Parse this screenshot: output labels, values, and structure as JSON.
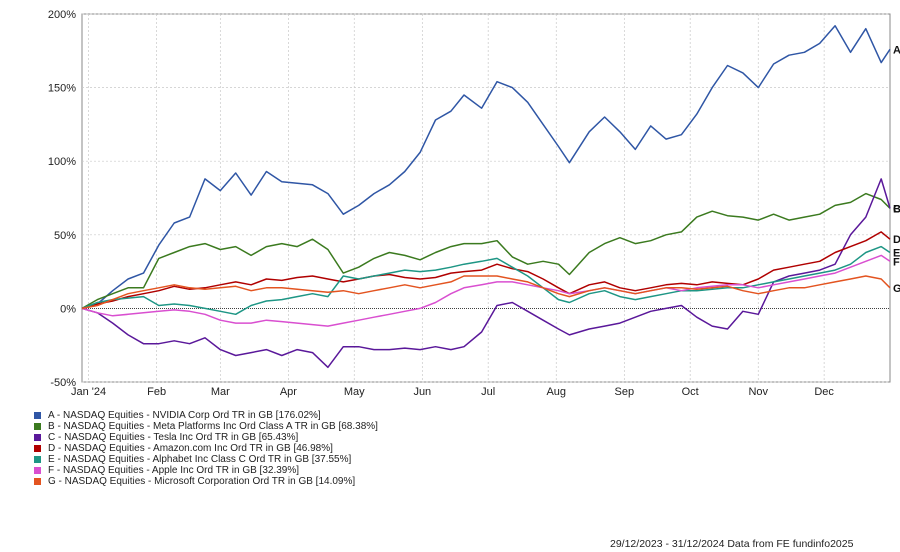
{
  "chart_data": {
    "type": "line",
    "xlabel": "",
    "ylabel": "",
    "ylim": [
      -50,
      200
    ],
    "y_ticks": [
      "200%",
      "150%",
      "100%",
      "50%",
      "0%",
      "-50%"
    ],
    "x_ticks": [
      "Jan '24",
      "Feb",
      "Mar",
      "Apr",
      "May",
      "Jun",
      "Jul",
      "Aug",
      "Sep",
      "Oct",
      "Nov",
      "Dec"
    ],
    "grid": true,
    "footer": "29/12/2023 - 31/12/2024 Data from FE fundinfo2025",
    "series": [
      {
        "letter": "A",
        "color": "#2f56a5",
        "name": "A - NASDAQ Equities - NVIDIA Corp Ord TR in GB [176.02%]",
        "x": [
          "2023-12-29",
          "2024-01-05",
          "2024-01-12",
          "2024-01-19",
          "2024-01-26",
          "2024-02-02",
          "2024-02-09",
          "2024-02-16",
          "2024-02-23",
          "2024-03-01",
          "2024-03-08",
          "2024-03-15",
          "2024-03-22",
          "2024-03-29",
          "2024-04-05",
          "2024-04-12",
          "2024-04-19",
          "2024-04-26",
          "2024-05-03",
          "2024-05-10",
          "2024-05-17",
          "2024-05-24",
          "2024-05-31",
          "2024-06-07",
          "2024-06-14",
          "2024-06-20",
          "2024-06-28",
          "2024-07-05",
          "2024-07-12",
          "2024-07-19",
          "2024-07-26",
          "2024-08-02",
          "2024-08-07",
          "2024-08-16",
          "2024-08-23",
          "2024-08-30",
          "2024-09-06",
          "2024-09-13",
          "2024-09-20",
          "2024-09-27",
          "2024-10-04",
          "2024-10-11",
          "2024-10-18",
          "2024-10-25",
          "2024-11-01",
          "2024-11-08",
          "2024-11-15",
          "2024-11-22",
          "2024-11-29",
          "2024-12-06",
          "2024-12-13",
          "2024-12-20",
          "2024-12-27",
          "2024-12-31"
        ],
        "y": [
          0,
          3,
          12,
          20,
          24,
          43,
          58,
          62,
          88,
          80,
          92,
          77,
          93,
          86,
          85,
          84,
          78,
          64,
          70,
          78,
          84,
          93,
          106,
          128,
          134,
          145,
          136,
          154,
          150,
          140,
          125,
          110,
          99,
          120,
          130,
          120,
          108,
          124,
          115,
          118,
          132,
          150,
          165,
          160,
          150,
          166,
          172,
          174,
          180,
          192,
          174,
          190,
          167,
          176
        ]
      },
      {
        "letter": "B",
        "color": "#3b7a1f",
        "name": "B - NASDAQ Equities - Meta Platforms Inc Ord Class A TR in GB [68.38%]",
        "x": [
          "2023-12-29",
          "2024-01-05",
          "2024-01-12",
          "2024-01-19",
          "2024-01-26",
          "2024-02-02",
          "2024-02-09",
          "2024-02-16",
          "2024-02-23",
          "2024-03-01",
          "2024-03-08",
          "2024-03-15",
          "2024-03-22",
          "2024-03-29",
          "2024-04-05",
          "2024-04-12",
          "2024-04-19",
          "2024-04-26",
          "2024-05-03",
          "2024-05-10",
          "2024-05-17",
          "2024-05-24",
          "2024-05-31",
          "2024-06-07",
          "2024-06-14",
          "2024-06-20",
          "2024-06-28",
          "2024-07-05",
          "2024-07-12",
          "2024-07-19",
          "2024-07-26",
          "2024-08-02",
          "2024-08-07",
          "2024-08-16",
          "2024-08-23",
          "2024-08-30",
          "2024-09-06",
          "2024-09-13",
          "2024-09-20",
          "2024-09-27",
          "2024-10-04",
          "2024-10-11",
          "2024-10-18",
          "2024-10-25",
          "2024-11-01",
          "2024-11-08",
          "2024-11-15",
          "2024-11-22",
          "2024-11-29",
          "2024-12-06",
          "2024-12-13",
          "2024-12-20",
          "2024-12-27",
          "2024-12-31"
        ],
        "y": [
          0,
          6,
          10,
          14,
          14,
          34,
          38,
          42,
          44,
          40,
          42,
          36,
          42,
          44,
          42,
          47,
          40,
          24,
          28,
          34,
          38,
          36,
          33,
          38,
          42,
          44,
          44,
          46,
          35,
          30,
          32,
          30,
          23,
          38,
          44,
          48,
          44,
          46,
          50,
          52,
          62,
          66,
          63,
          62,
          60,
          64,
          60,
          62,
          64,
          70,
          72,
          78,
          74,
          68
        ]
      },
      {
        "letter": "C",
        "color": "#5a189a",
        "name": "C - NASDAQ Equities - Tesla Inc Ord TR in GB [65.43%]",
        "x": [
          "2023-12-29",
          "2024-01-05",
          "2024-01-12",
          "2024-01-19",
          "2024-01-26",
          "2024-02-02",
          "2024-02-09",
          "2024-02-16",
          "2024-02-23",
          "2024-03-01",
          "2024-03-08",
          "2024-03-15",
          "2024-03-22",
          "2024-03-29",
          "2024-04-05",
          "2024-04-12",
          "2024-04-19",
          "2024-04-26",
          "2024-05-03",
          "2024-05-10",
          "2024-05-17",
          "2024-05-24",
          "2024-05-31",
          "2024-06-07",
          "2024-06-14",
          "2024-06-20",
          "2024-06-28",
          "2024-07-05",
          "2024-07-12",
          "2024-07-19",
          "2024-07-26",
          "2024-08-02",
          "2024-08-07",
          "2024-08-16",
          "2024-08-23",
          "2024-08-30",
          "2024-09-06",
          "2024-09-13",
          "2024-09-20",
          "2024-09-27",
          "2024-10-04",
          "2024-10-11",
          "2024-10-18",
          "2024-10-25",
          "2024-11-01",
          "2024-11-08",
          "2024-11-15",
          "2024-11-22",
          "2024-11-29",
          "2024-12-06",
          "2024-12-13",
          "2024-12-20",
          "2024-12-27",
          "2024-12-31"
        ],
        "y": [
          0,
          -3,
          -10,
          -18,
          -24,
          -24,
          -22,
          -24,
          -20,
          -28,
          -32,
          -30,
          -28,
          -32,
          -28,
          -30,
          -40,
          -26,
          -26,
          -28,
          -28,
          -27,
          -28,
          -26,
          -28,
          -26,
          -16,
          2,
          4,
          -2,
          -8,
          -14,
          -18,
          -14,
          -12,
          -10,
          -6,
          -2,
          0,
          2,
          -6,
          -12,
          -14,
          -2,
          -4,
          18,
          22,
          24,
          26,
          30,
          50,
          62,
          88,
          68
        ]
      },
      {
        "letter": "D",
        "color": "#b00000",
        "name": "D - NASDAQ Equities - Amazon.com Inc Ord TR in GB [46.98%]",
        "x": [
          "2023-12-29",
          "2024-01-05",
          "2024-01-12",
          "2024-01-19",
          "2024-01-26",
          "2024-02-02",
          "2024-02-09",
          "2024-02-16",
          "2024-02-23",
          "2024-03-01",
          "2024-03-08",
          "2024-03-15",
          "2024-03-22",
          "2024-03-29",
          "2024-04-05",
          "2024-04-12",
          "2024-04-19",
          "2024-04-26",
          "2024-05-03",
          "2024-05-10",
          "2024-05-17",
          "2024-05-24",
          "2024-05-31",
          "2024-06-07",
          "2024-06-14",
          "2024-06-20",
          "2024-06-28",
          "2024-07-05",
          "2024-07-12",
          "2024-07-19",
          "2024-07-26",
          "2024-08-02",
          "2024-08-07",
          "2024-08-16",
          "2024-08-23",
          "2024-08-30",
          "2024-09-06",
          "2024-09-13",
          "2024-09-20",
          "2024-09-27",
          "2024-10-04",
          "2024-10-11",
          "2024-10-18",
          "2024-10-25",
          "2024-11-01",
          "2024-11-08",
          "2024-11-15",
          "2024-11-22",
          "2024-11-29",
          "2024-12-06",
          "2024-12-13",
          "2024-12-20",
          "2024-12-27",
          "2024-12-31"
        ],
        "y": [
          0,
          3,
          5,
          8,
          10,
          12,
          15,
          13,
          14,
          16,
          18,
          16,
          20,
          19,
          21,
          22,
          20,
          18,
          20,
          22,
          23,
          21,
          20,
          21,
          24,
          25,
          26,
          30,
          27,
          25,
          20,
          14,
          10,
          16,
          18,
          14,
          12,
          14,
          16,
          17,
          16,
          18,
          17,
          16,
          20,
          26,
          28,
          30,
          32,
          38,
          42,
          46,
          52,
          47
        ]
      },
      {
        "letter": "E",
        "color": "#1e9685",
        "name": "E - NASDAQ Equities - Alphabet Inc Class C Ord TR in GB [37.55%]",
        "x": [
          "2023-12-29",
          "2024-01-05",
          "2024-01-12",
          "2024-01-19",
          "2024-01-26",
          "2024-02-02",
          "2024-02-09",
          "2024-02-16",
          "2024-02-23",
          "2024-03-01",
          "2024-03-08",
          "2024-03-15",
          "2024-03-22",
          "2024-03-29",
          "2024-04-05",
          "2024-04-12",
          "2024-04-19",
          "2024-04-26",
          "2024-05-03",
          "2024-05-10",
          "2024-05-17",
          "2024-05-24",
          "2024-05-31",
          "2024-06-07",
          "2024-06-14",
          "2024-06-20",
          "2024-06-28",
          "2024-07-05",
          "2024-07-12",
          "2024-07-19",
          "2024-07-26",
          "2024-08-02",
          "2024-08-07",
          "2024-08-16",
          "2024-08-23",
          "2024-08-30",
          "2024-09-06",
          "2024-09-13",
          "2024-09-20",
          "2024-09-27",
          "2024-10-04",
          "2024-10-11",
          "2024-10-18",
          "2024-10-25",
          "2024-11-01",
          "2024-11-08",
          "2024-11-15",
          "2024-11-22",
          "2024-11-29",
          "2024-12-06",
          "2024-12-13",
          "2024-12-20",
          "2024-12-27",
          "2024-12-31"
        ],
        "y": [
          0,
          4,
          6,
          7,
          8,
          2,
          3,
          2,
          0,
          -2,
          -4,
          2,
          5,
          6,
          8,
          10,
          8,
          22,
          20,
          22,
          24,
          26,
          25,
          26,
          28,
          30,
          32,
          34,
          28,
          22,
          14,
          6,
          4,
          10,
          12,
          8,
          6,
          8,
          10,
          12,
          12,
          13,
          14,
          14,
          16,
          18,
          20,
          22,
          24,
          26,
          30,
          38,
          42,
          38
        ]
      },
      {
        "letter": "F",
        "color": "#d94fd0",
        "name": "F - NASDAQ Equities - Apple Inc Ord TR in GB [32.39%]",
        "x": [
          "2023-12-29",
          "2024-01-05",
          "2024-01-12",
          "2024-01-19",
          "2024-01-26",
          "2024-02-02",
          "2024-02-09",
          "2024-02-16",
          "2024-02-23",
          "2024-03-01",
          "2024-03-08",
          "2024-03-15",
          "2024-03-22",
          "2024-03-29",
          "2024-04-05",
          "2024-04-12",
          "2024-04-19",
          "2024-04-26",
          "2024-05-03",
          "2024-05-10",
          "2024-05-17",
          "2024-05-24",
          "2024-05-31",
          "2024-06-07",
          "2024-06-14",
          "2024-06-20",
          "2024-06-28",
          "2024-07-05",
          "2024-07-12",
          "2024-07-19",
          "2024-07-26",
          "2024-08-02",
          "2024-08-07",
          "2024-08-16",
          "2024-08-23",
          "2024-08-30",
          "2024-09-06",
          "2024-09-13",
          "2024-09-20",
          "2024-09-27",
          "2024-10-04",
          "2024-10-11",
          "2024-10-18",
          "2024-10-25",
          "2024-11-01",
          "2024-11-08",
          "2024-11-15",
          "2024-11-22",
          "2024-11-29",
          "2024-12-06",
          "2024-12-13",
          "2024-12-20",
          "2024-12-27",
          "2024-12-31"
        ],
        "y": [
          0,
          -3,
          -5,
          -4,
          -3,
          -2,
          -1,
          -2,
          -4,
          -8,
          -10,
          -10,
          -8,
          -9,
          -10,
          -11,
          -12,
          -10,
          -8,
          -6,
          -4,
          -2,
          0,
          4,
          10,
          14,
          16,
          18,
          18,
          16,
          14,
          12,
          10,
          12,
          14,
          12,
          10,
          12,
          14,
          12,
          14,
          15,
          16,
          16,
          14,
          16,
          18,
          20,
          22,
          24,
          28,
          32,
          36,
          32
        ]
      },
      {
        "letter": "G",
        "color": "#e35420",
        "name": "G - NASDAQ Equities - Microsoft Corporation Ord TR in GB [14.09%]",
        "x": [
          "2023-12-29",
          "2024-01-05",
          "2024-01-12",
          "2024-01-19",
          "2024-01-26",
          "2024-02-02",
          "2024-02-09",
          "2024-02-16",
          "2024-02-23",
          "2024-03-01",
          "2024-03-08",
          "2024-03-15",
          "2024-03-22",
          "2024-03-29",
          "2024-04-05",
          "2024-04-12",
          "2024-04-19",
          "2024-04-26",
          "2024-05-03",
          "2024-05-10",
          "2024-05-17",
          "2024-05-24",
          "2024-05-31",
          "2024-06-07",
          "2024-06-14",
          "2024-06-20",
          "2024-06-28",
          "2024-07-05",
          "2024-07-12",
          "2024-07-19",
          "2024-07-26",
          "2024-08-02",
          "2024-08-07",
          "2024-08-16",
          "2024-08-23",
          "2024-08-30",
          "2024-09-06",
          "2024-09-13",
          "2024-09-20",
          "2024-09-27",
          "2024-10-04",
          "2024-10-11",
          "2024-10-18",
          "2024-10-25",
          "2024-11-01",
          "2024-11-08",
          "2024-11-15",
          "2024-11-22",
          "2024-11-29",
          "2024-12-06",
          "2024-12-13",
          "2024-12-20",
          "2024-12-27",
          "2024-12-31"
        ],
        "y": [
          0,
          2,
          6,
          10,
          12,
          14,
          16,
          14,
          13,
          14,
          15,
          12,
          14,
          14,
          13,
          12,
          11,
          12,
          10,
          12,
          14,
          16,
          14,
          16,
          18,
          22,
          22,
          22,
          20,
          18,
          14,
          10,
          8,
          12,
          14,
          12,
          10,
          12,
          14,
          14,
          13,
          14,
          15,
          12,
          10,
          12,
          14,
          14,
          16,
          18,
          20,
          22,
          20,
          14
        ]
      }
    ]
  }
}
